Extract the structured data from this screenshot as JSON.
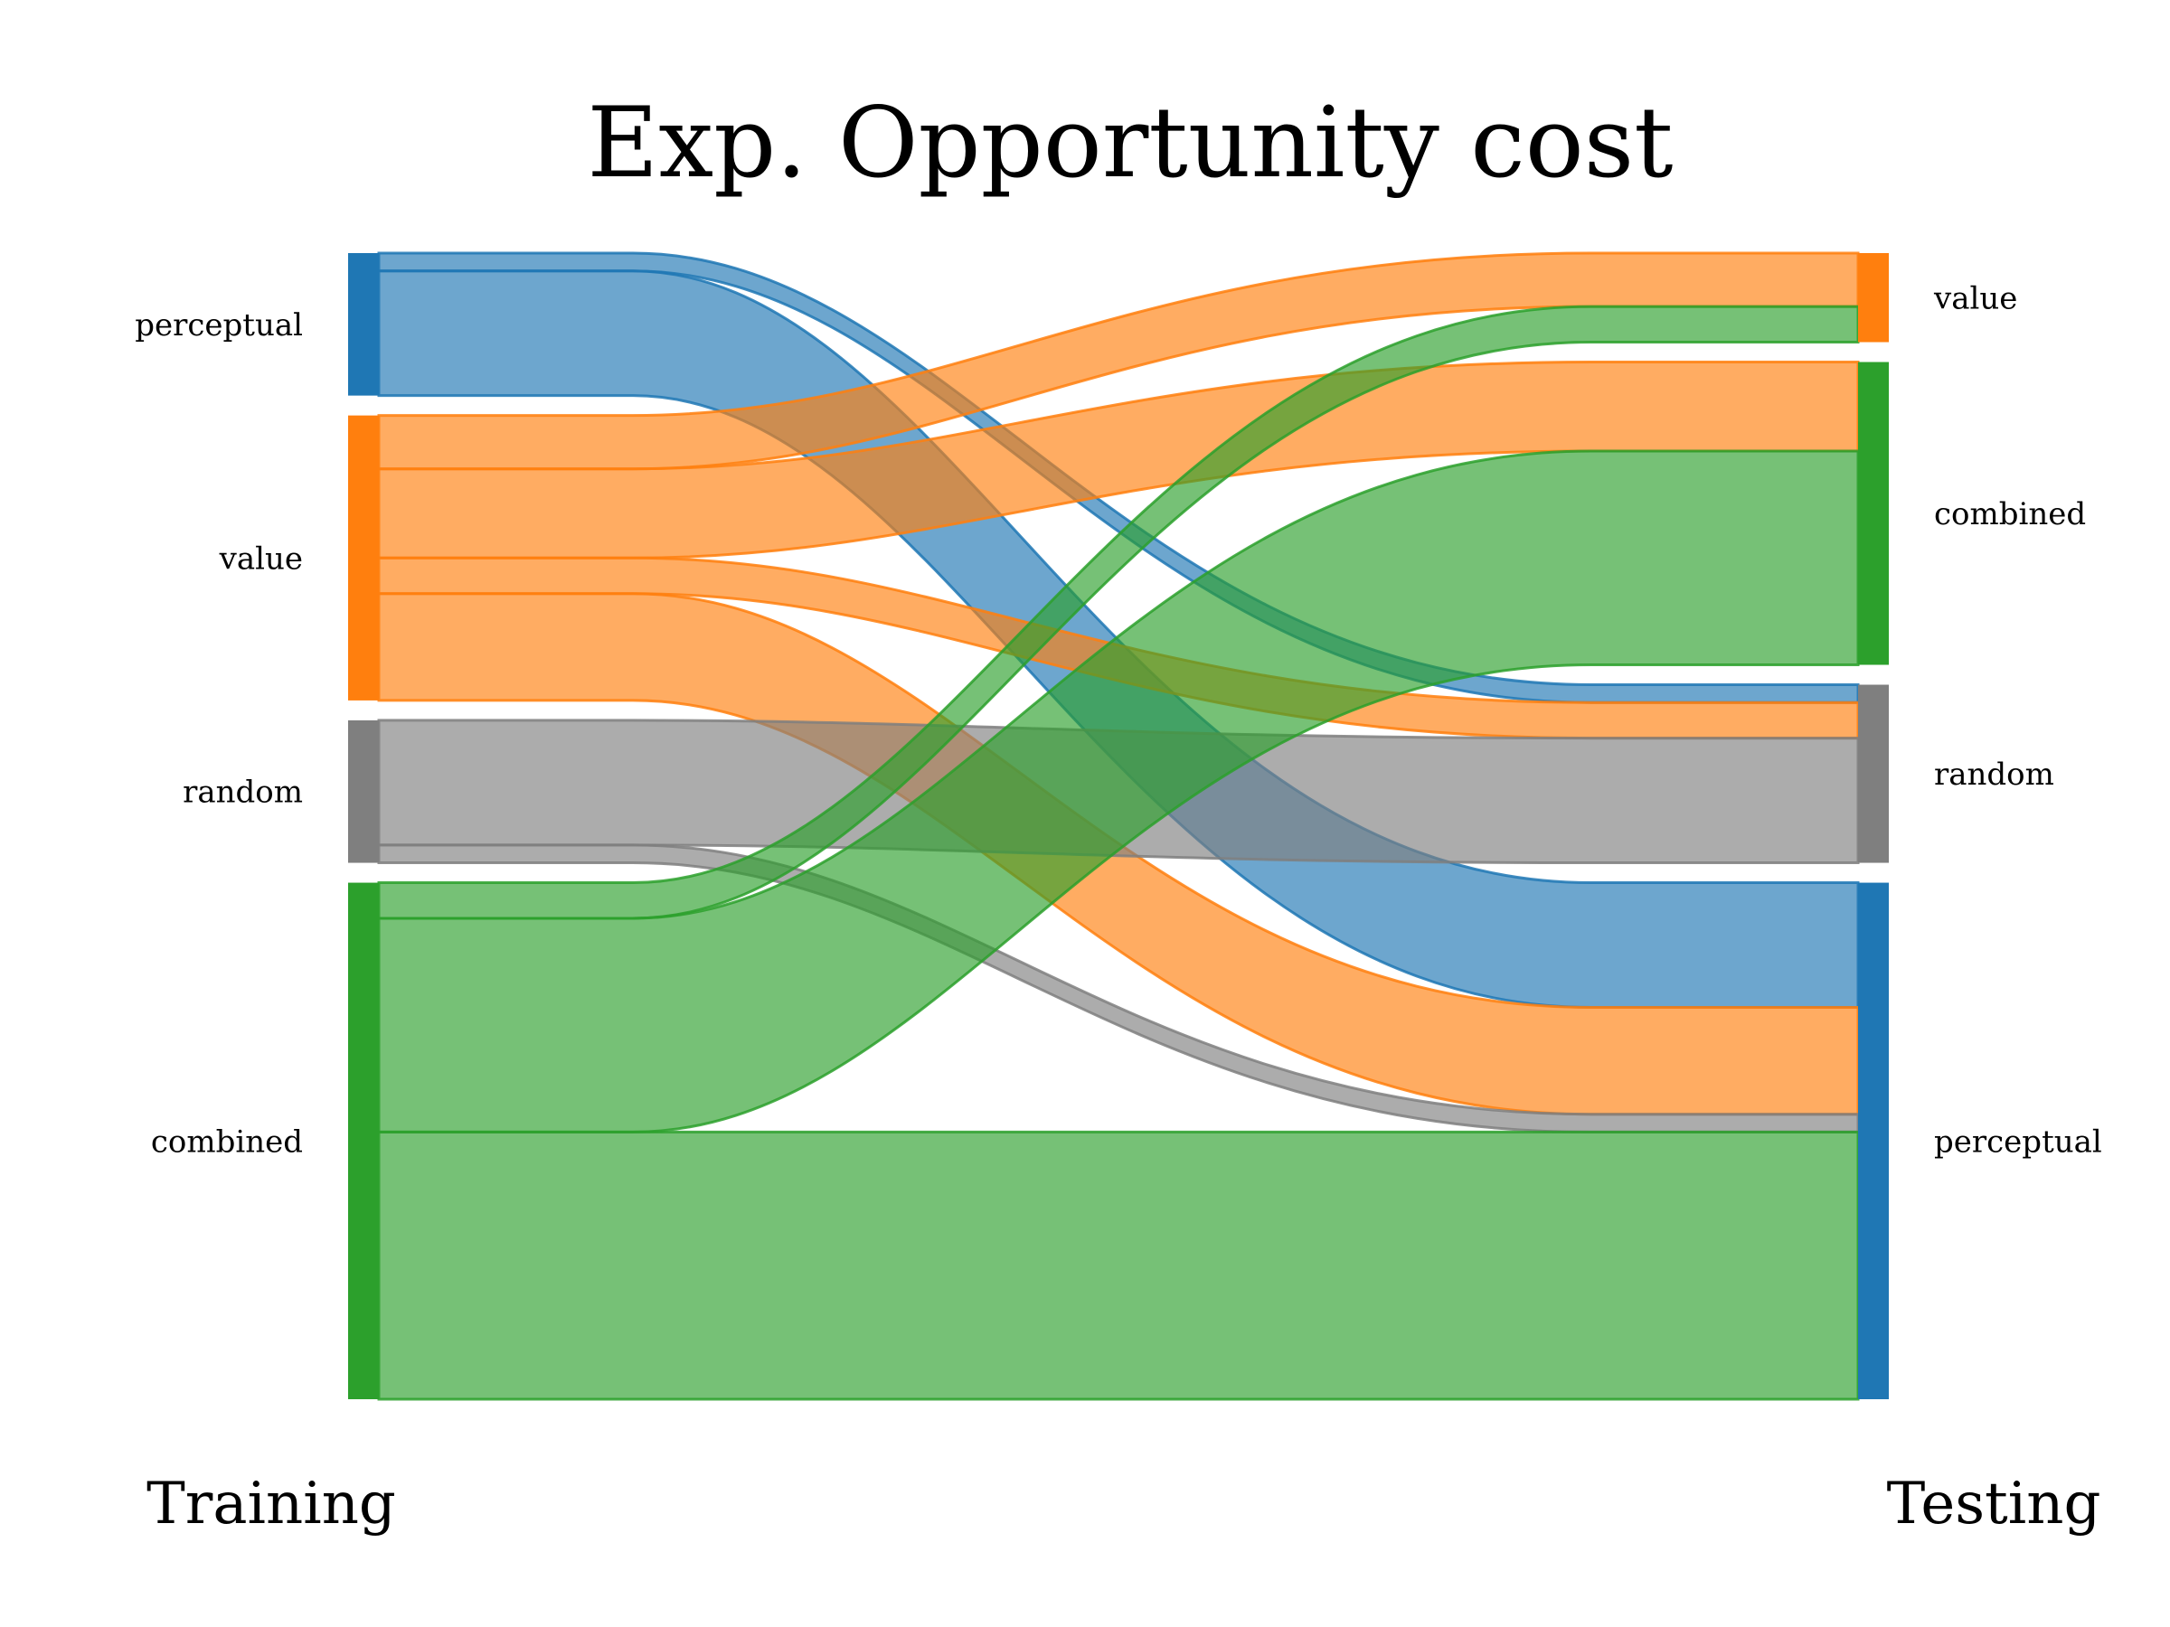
{
  "chart_data": {
    "type": "sankey",
    "title": "Exp. Opportunity cost",
    "left_label": "Training",
    "right_label": "Testing",
    "colors": {
      "perceptual": "#1f77b4",
      "value": "#ff7f0e",
      "random": "#7f7f7f",
      "combined": "#2ca02c"
    },
    "left_nodes": [
      "perceptual",
      "value",
      "random",
      "combined"
    ],
    "right_nodes": [
      "value",
      "combined",
      "random",
      "perceptual"
    ],
    "flows": [
      {
        "source": "perceptual",
        "target": "random",
        "value": 2
      },
      {
        "source": "perceptual",
        "target": "perceptual",
        "value": 14
      },
      {
        "source": "value",
        "target": "value",
        "value": 6
      },
      {
        "source": "value",
        "target": "combined",
        "value": 10
      },
      {
        "source": "value",
        "target": "random",
        "value": 4
      },
      {
        "source": "value",
        "target": "perceptual",
        "value": 12
      },
      {
        "source": "random",
        "target": "random",
        "value": 14
      },
      {
        "source": "random",
        "target": "perceptual",
        "value": 2
      },
      {
        "source": "combined",
        "target": "value",
        "value": 4
      },
      {
        "source": "combined",
        "target": "combined",
        "value": 24
      },
      {
        "source": "combined",
        "target": "perceptual",
        "value": 30
      }
    ]
  }
}
